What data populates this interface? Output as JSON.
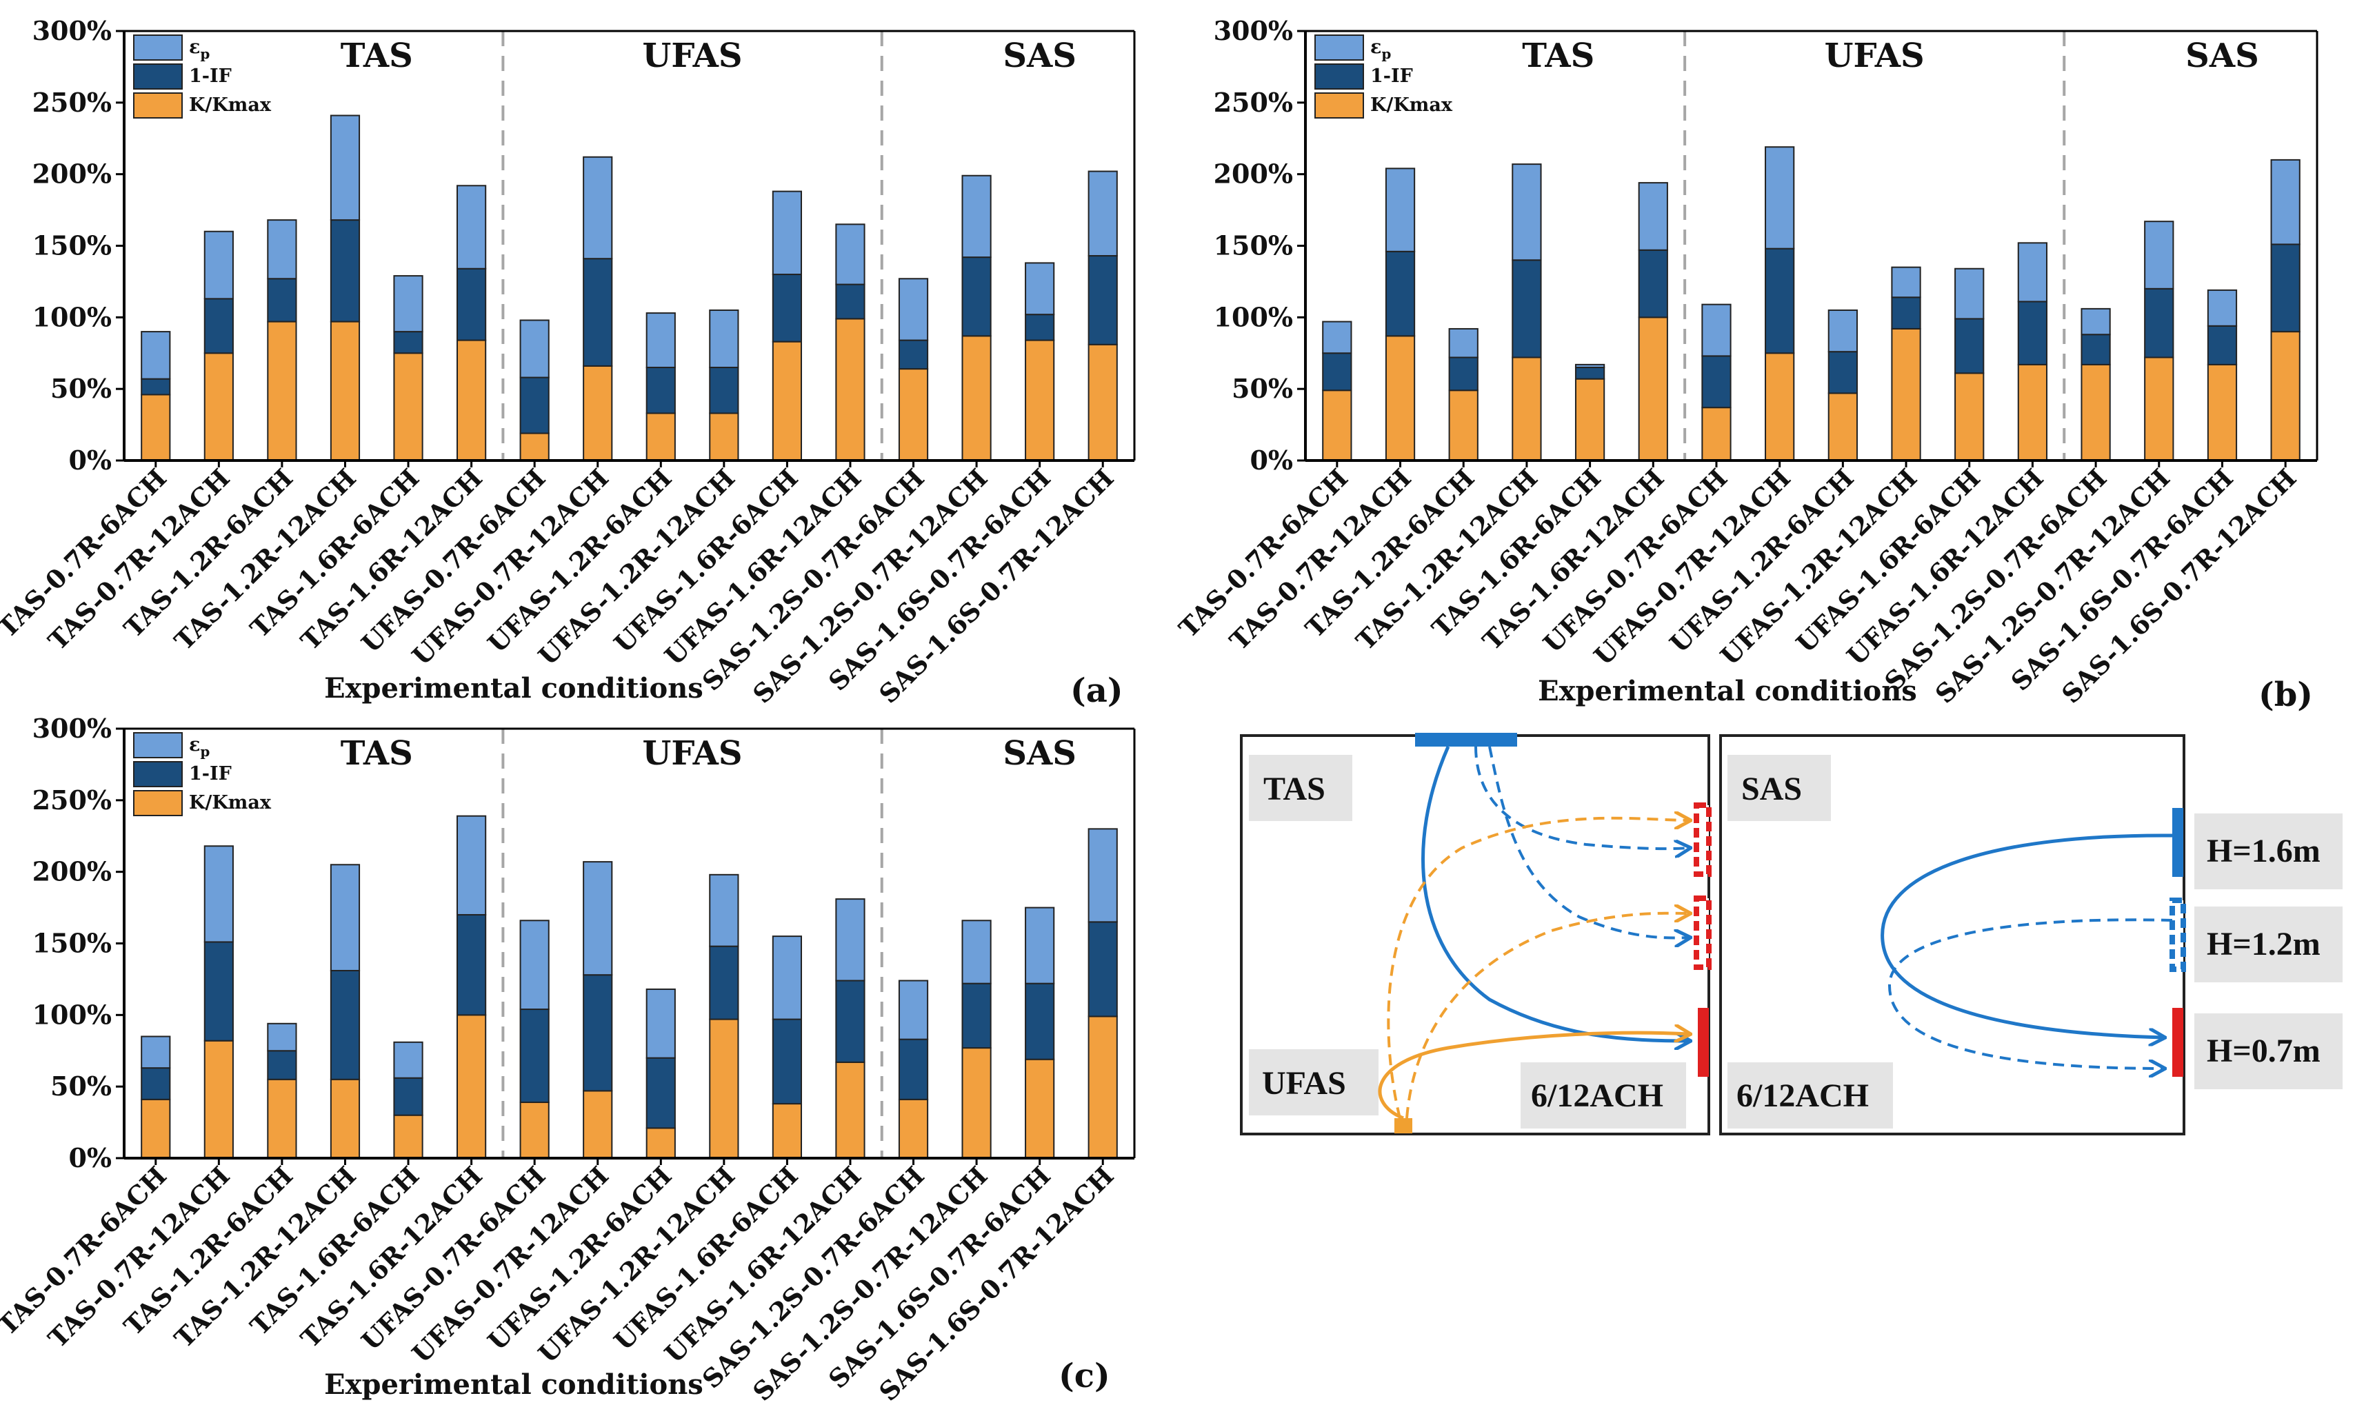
{
  "colors": {
    "eps": "#6e9fd9",
    "one_minus_if": "#1b4d7c",
    "k": "#f2a03f",
    "axis": "#000000",
    "divider": "#a6a6a6",
    "blue_line": "#1f77c8",
    "orange_line": "#f0a030",
    "red": "#e02020"
  },
  "legend": {
    "eps": "ε",
    "eps_sub": "p",
    "if": "1-IF",
    "k": "K/Kmax"
  },
  "groups": [
    "TAS",
    "UFAS",
    "SAS"
  ],
  "chart_data": [
    {
      "type": "bar",
      "stacked": true,
      "panel_label": "(a)",
      "xlabel": "Experimental conditions",
      "ylabel": "",
      "ylim": [
        0,
        300
      ],
      "yticks": [
        "0%",
        "50%",
        "100%",
        "150%",
        "200%",
        "250%",
        "300%"
      ],
      "categories": [
        "TAS-0.7R-6ACH",
        "TAS-0.7R-12ACH",
        "TAS-1.2R-6ACH",
        "TAS-1.2R-12ACH",
        "TAS-1.6R-6ACH",
        "TAS-1.6R-12ACH",
        "UFAS-0.7R-6ACH",
        "UFAS-0.7R-12ACH",
        "UFAS-1.2R-6ACH",
        "UFAS-1.2R-12ACH",
        "UFAS-1.6R-6ACH",
        "UFAS-1.6R-12ACH",
        "SAS-1.2S-0.7R-6ACH",
        "SAS-1.2S-0.7R-12ACH",
        "SAS-1.6S-0.7R-6ACH",
        "SAS-1.6S-0.7R-12ACH"
      ],
      "series": [
        {
          "name": "K/Kmax",
          "values": [
            46,
            75,
            97,
            97,
            75,
            84,
            19,
            66,
            33,
            33,
            83,
            99,
            64,
            87,
            84,
            81
          ]
        },
        {
          "name": "1-IF",
          "values": [
            11,
            38,
            30,
            71,
            15,
            50,
            39,
            75,
            32,
            32,
            47,
            24,
            20,
            55,
            18,
            62
          ]
        },
        {
          "name": "εp",
          "values": [
            33,
            47,
            41,
            73,
            39,
            58,
            40,
            71,
            38,
            40,
            58,
            42,
            43,
            57,
            36,
            59
          ]
        }
      ]
    },
    {
      "type": "bar",
      "stacked": true,
      "panel_label": "(b)",
      "xlabel": "Experimental conditions",
      "ylabel": "",
      "ylim": [
        0,
        300
      ],
      "yticks": [
        "0%",
        "50%",
        "100%",
        "150%",
        "200%",
        "250%",
        "300%"
      ],
      "categories": [
        "TAS-0.7R-6ACH",
        "TAS-0.7R-12ACH",
        "TAS-1.2R-6ACH",
        "TAS-1.2R-12ACH",
        "TAS-1.6R-6ACH",
        "TAS-1.6R-12ACH",
        "UFAS-0.7R-6ACH",
        "UFAS-0.7R-12ACH",
        "UFAS-1.2R-6ACH",
        "UFAS-1.2R-12ACH",
        "UFAS-1.6R-6ACH",
        "UFAS-1.6R-12ACH",
        "SAS-1.2S-0.7R-6ACH",
        "SAS-1.2S-0.7R-12ACH",
        "SAS-1.6S-0.7R-6ACH",
        "SAS-1.6S-0.7R-12ACH"
      ],
      "series": [
        {
          "name": "K/Kmax",
          "values": [
            49,
            87,
            49,
            72,
            57,
            100,
            37,
            75,
            47,
            92,
            61,
            67,
            67,
            72,
            67,
            90
          ]
        },
        {
          "name": "1-IF",
          "values": [
            26,
            59,
            23,
            68,
            8,
            47,
            36,
            73,
            29,
            22,
            38,
            44,
            21,
            48,
            27,
            61
          ]
        },
        {
          "name": "εp",
          "values": [
            22,
            58,
            20,
            67,
            2,
            47,
            36,
            71,
            29,
            21,
            35,
            41,
            18,
            47,
            25,
            59
          ]
        }
      ]
    },
    {
      "type": "bar",
      "stacked": true,
      "panel_label": "(c)",
      "xlabel": "Experimental conditions",
      "ylabel": "",
      "ylim": [
        0,
        300
      ],
      "yticks": [
        "0%",
        "50%",
        "100%",
        "150%",
        "200%",
        "250%",
        "300%"
      ],
      "categories": [
        "TAS-0.7R-6ACH",
        "TAS-0.7R-12ACH",
        "TAS-1.2R-6ACH",
        "TAS-1.2R-12ACH",
        "TAS-1.6R-6ACH",
        "TAS-1.6R-12ACH",
        "UFAS-0.7R-6ACH",
        "UFAS-0.7R-12ACH",
        "UFAS-1.2R-6ACH",
        "UFAS-1.2R-12ACH",
        "UFAS-1.6R-6ACH",
        "UFAS-1.6R-12ACH",
        "SAS-1.2S-0.7R-6ACH",
        "SAS-1.2S-0.7R-12ACH",
        "SAS-1.6S-0.7R-6ACH",
        "SAS-1.6S-0.7R-12ACH"
      ],
      "series": [
        {
          "name": "K/Kmax",
          "values": [
            41,
            82,
            55,
            55,
            30,
            100,
            39,
            47,
            21,
            97,
            38,
            67,
            41,
            77,
            69,
            99
          ]
        },
        {
          "name": "1-IF",
          "values": [
            22,
            69,
            20,
            76,
            26,
            70,
            65,
            81,
            49,
            51,
            59,
            57,
            42,
            45,
            53,
            66
          ]
        },
        {
          "name": "εp",
          "values": [
            22,
            67,
            19,
            74,
            25,
            69,
            62,
            79,
            48,
            50,
            58,
            57,
            41,
            44,
            53,
            65
          ]
        }
      ]
    }
  ],
  "diagram": {
    "left_label": "TAS",
    "left_bottom_label": "UFAS",
    "left_ach": "6/12ACH",
    "right_label": "SAS",
    "right_ach": "6/12ACH",
    "heights": [
      "H=1.6m",
      "H=1.2m",
      "H=0.7m"
    ]
  }
}
